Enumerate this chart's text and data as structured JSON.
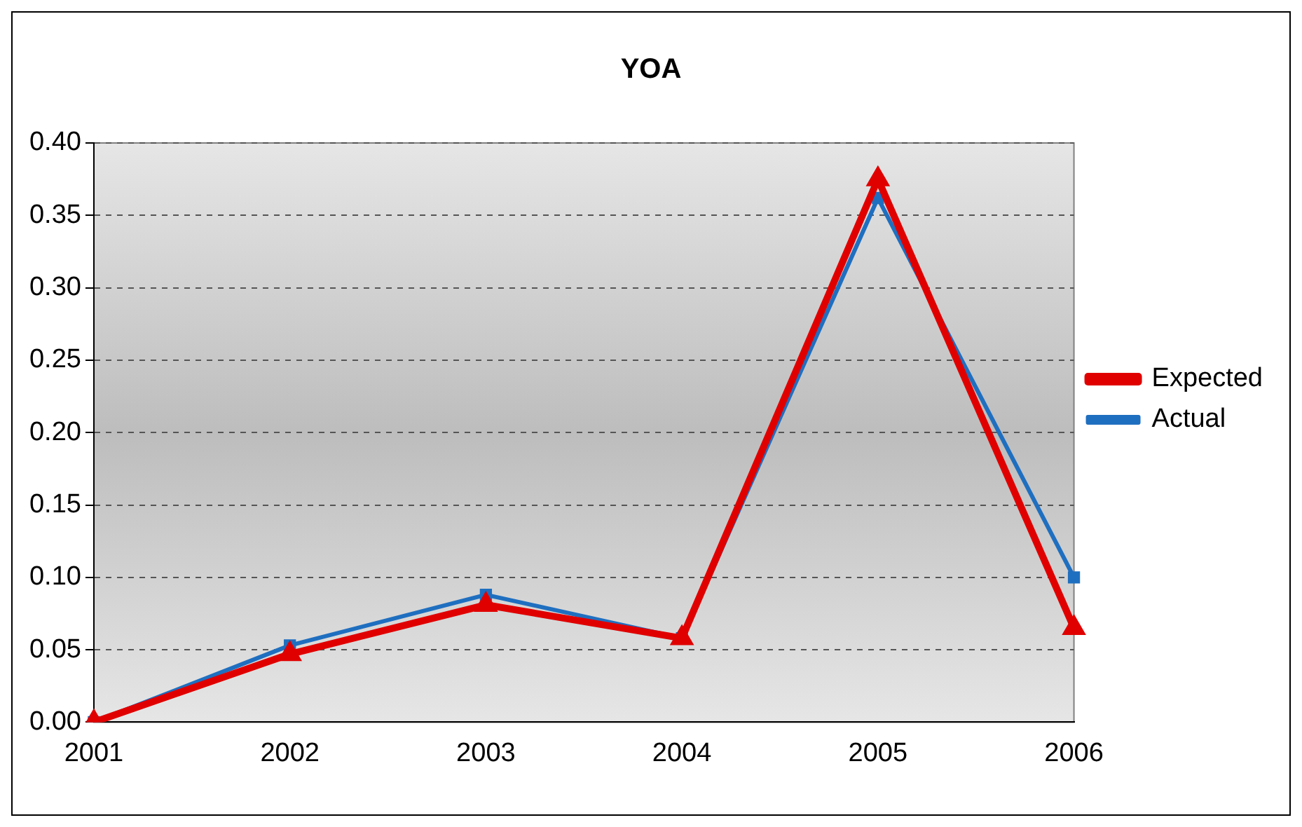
{
  "chart_data": {
    "type": "line",
    "title": "YOA",
    "categories": [
      "2001",
      "2002",
      "2003",
      "2004",
      "2005",
      "2006"
    ],
    "series": [
      {
        "name": "Expected",
        "color": "#e00000",
        "values": [
          0,
          0.047,
          0.081,
          0.058,
          0.375,
          0.065
        ],
        "marker": "triangle"
      },
      {
        "name": "Actual",
        "color": "#1f6fc0",
        "values": [
          0,
          0.053,
          0.088,
          0.058,
          0.362,
          0.1
        ],
        "marker": "square"
      }
    ],
    "ylim": [
      0,
      0.4
    ],
    "yticks": [
      {
        "value": 0,
        "label": "0.00"
      },
      {
        "value": 0.05,
        "label": "0.05"
      },
      {
        "value": 0.1,
        "label": "0.10"
      },
      {
        "value": 0.15,
        "label": "0.15"
      },
      {
        "value": 0.2,
        "label": "0.20"
      },
      {
        "value": 0.25,
        "label": "0.25"
      },
      {
        "value": 0.3,
        "label": "0.30"
      },
      {
        "value": 0.35,
        "label": "0.35"
      },
      {
        "value": 0.4,
        "label": "0.40"
      }
    ],
    "grid": "y",
    "legend": "right"
  }
}
